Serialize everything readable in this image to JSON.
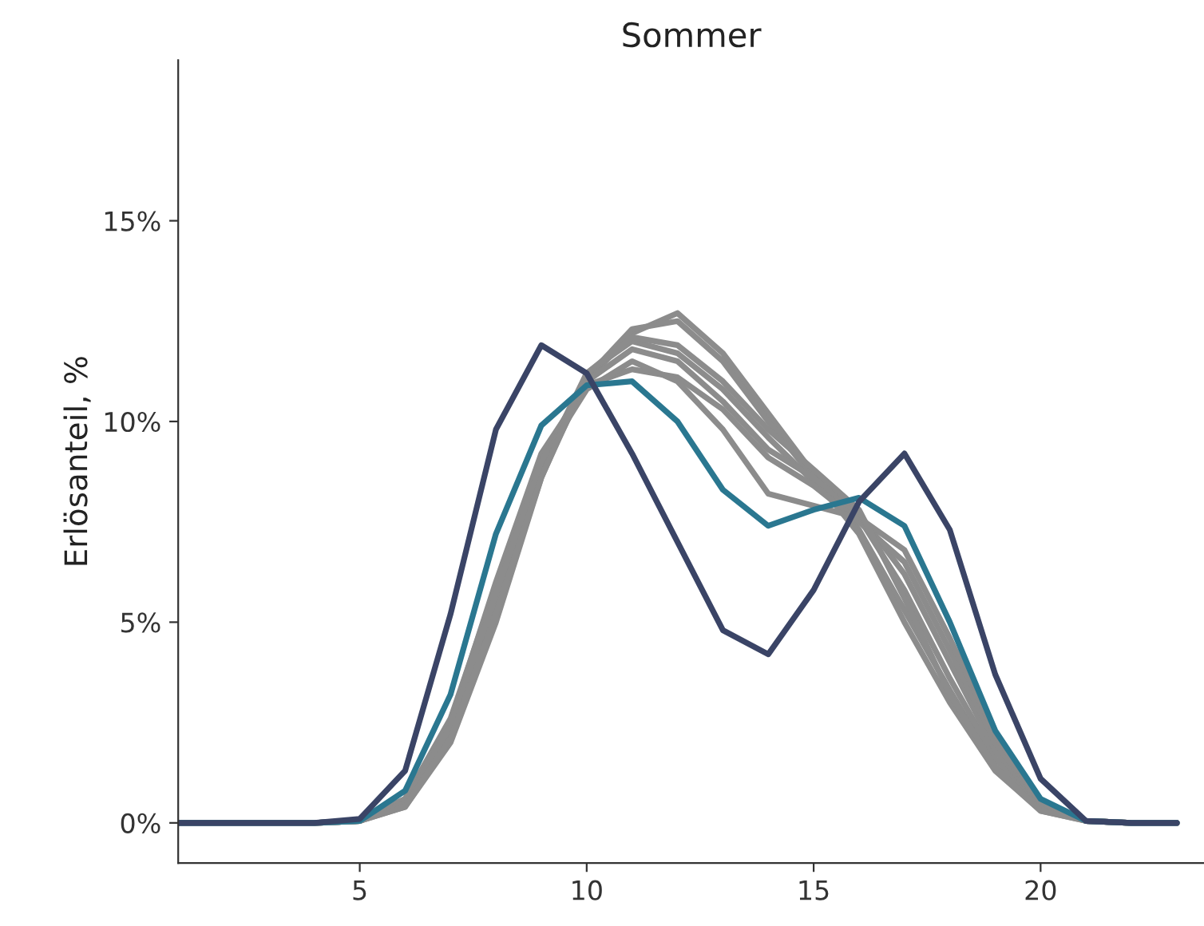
{
  "chart_data": {
    "type": "line",
    "title": "Sommer",
    "ylabel": "Erlösanteil, %",
    "x": [
      1,
      2,
      3,
      4,
      5,
      6,
      7,
      8,
      9,
      10,
      11,
      12,
      13,
      14,
      15,
      16,
      17,
      18,
      19,
      20,
      21,
      22,
      23
    ],
    "xlim": [
      1,
      23.6
    ],
    "xticks": [
      5,
      10,
      15,
      20
    ],
    "ylim": [
      -1,
      19
    ],
    "yticks": [
      {
        "value": 0,
        "label": "0%"
      },
      {
        "value": 5,
        "label": "5%"
      },
      {
        "value": 10,
        "label": "10%"
      },
      {
        "value": 15,
        "label": "15%"
      }
    ],
    "grid": false,
    "legend": false,
    "marker": "none",
    "line_style": "solid",
    "series": [
      {
        "color": "#8c8c8c",
        "values": [
          0,
          0,
          0,
          0,
          0.05,
          0.5,
          2.2,
          5.3,
          8.7,
          11.0,
          12.2,
          12.7,
          11.7,
          10.2,
          8.7,
          7.3,
          5.3,
          3.3,
          1.4,
          0.4,
          0.05,
          0,
          0
        ]
      },
      {
        "color": "#8c8c8c",
        "values": [
          0,
          0,
          0,
          0,
          0.05,
          0.4,
          2.0,
          5.0,
          8.6,
          11.1,
          12.3,
          12.5,
          11.5,
          10.0,
          8.6,
          7.2,
          5.0,
          3.0,
          1.3,
          0.3,
          0.05,
          0,
          0
        ]
      },
      {
        "color": "#8c8c8c",
        "values": [
          0,
          0,
          0,
          0,
          0.05,
          0.5,
          2.3,
          5.5,
          8.9,
          11.2,
          12.0,
          11.7,
          10.8,
          9.6,
          8.5,
          7.6,
          5.8,
          3.6,
          1.6,
          0.4,
          0.05,
          0,
          0
        ]
      },
      {
        "color": "#8c8c8c",
        "values": [
          0,
          0,
          0,
          0,
          0.05,
          0.6,
          2.6,
          5.9,
          9.1,
          11.0,
          11.8,
          11.5,
          10.5,
          9.3,
          8.6,
          7.7,
          6.2,
          4.0,
          1.8,
          0.5,
          0.05,
          0,
          0
        ]
      },
      {
        "color": "#8c8c8c",
        "values": [
          0,
          0,
          0,
          0,
          0.05,
          0.6,
          2.5,
          6.0,
          9.2,
          10.9,
          11.3,
          11.1,
          10.3,
          9.1,
          8.4,
          7.5,
          6.5,
          4.3,
          2.0,
          0.5,
          0.05,
          0,
          0
        ]
      },
      {
        "color": "#8c8c8c",
        "values": [
          0,
          0,
          0,
          0,
          0.05,
          0.5,
          2.4,
          5.7,
          9.0,
          10.8,
          11.5,
          11.0,
          9.8,
          8.2,
          7.9,
          7.6,
          6.8,
          4.6,
          2.2,
          0.5,
          0.05,
          0,
          0
        ]
      },
      {
        "color": "#8c8c8c",
        "values": [
          0,
          0,
          0,
          0,
          0.05,
          0.4,
          2.1,
          5.2,
          8.6,
          11.2,
          12.1,
          11.9,
          11.0,
          9.8,
          8.8,
          7.8,
          5.6,
          3.2,
          1.4,
          0.3,
          0.05,
          0,
          0
        ]
      },
      {
        "color": "#2a7790",
        "values": [
          0,
          0,
          0,
          0,
          0.05,
          0.8,
          3.2,
          7.2,
          9.9,
          10.9,
          11.0,
          10.0,
          8.3,
          7.4,
          7.8,
          8.1,
          7.4,
          5.0,
          2.3,
          0.6,
          0.05,
          0,
          0
        ]
      },
      {
        "color": "#3a4466",
        "values": [
          0,
          0,
          0,
          0,
          0.1,
          1.3,
          5.2,
          9.8,
          11.9,
          11.2,
          9.2,
          7.0,
          4.8,
          4.2,
          5.8,
          8.0,
          9.2,
          7.3,
          3.7,
          1.1,
          0.05,
          0,
          0
        ]
      }
    ]
  }
}
